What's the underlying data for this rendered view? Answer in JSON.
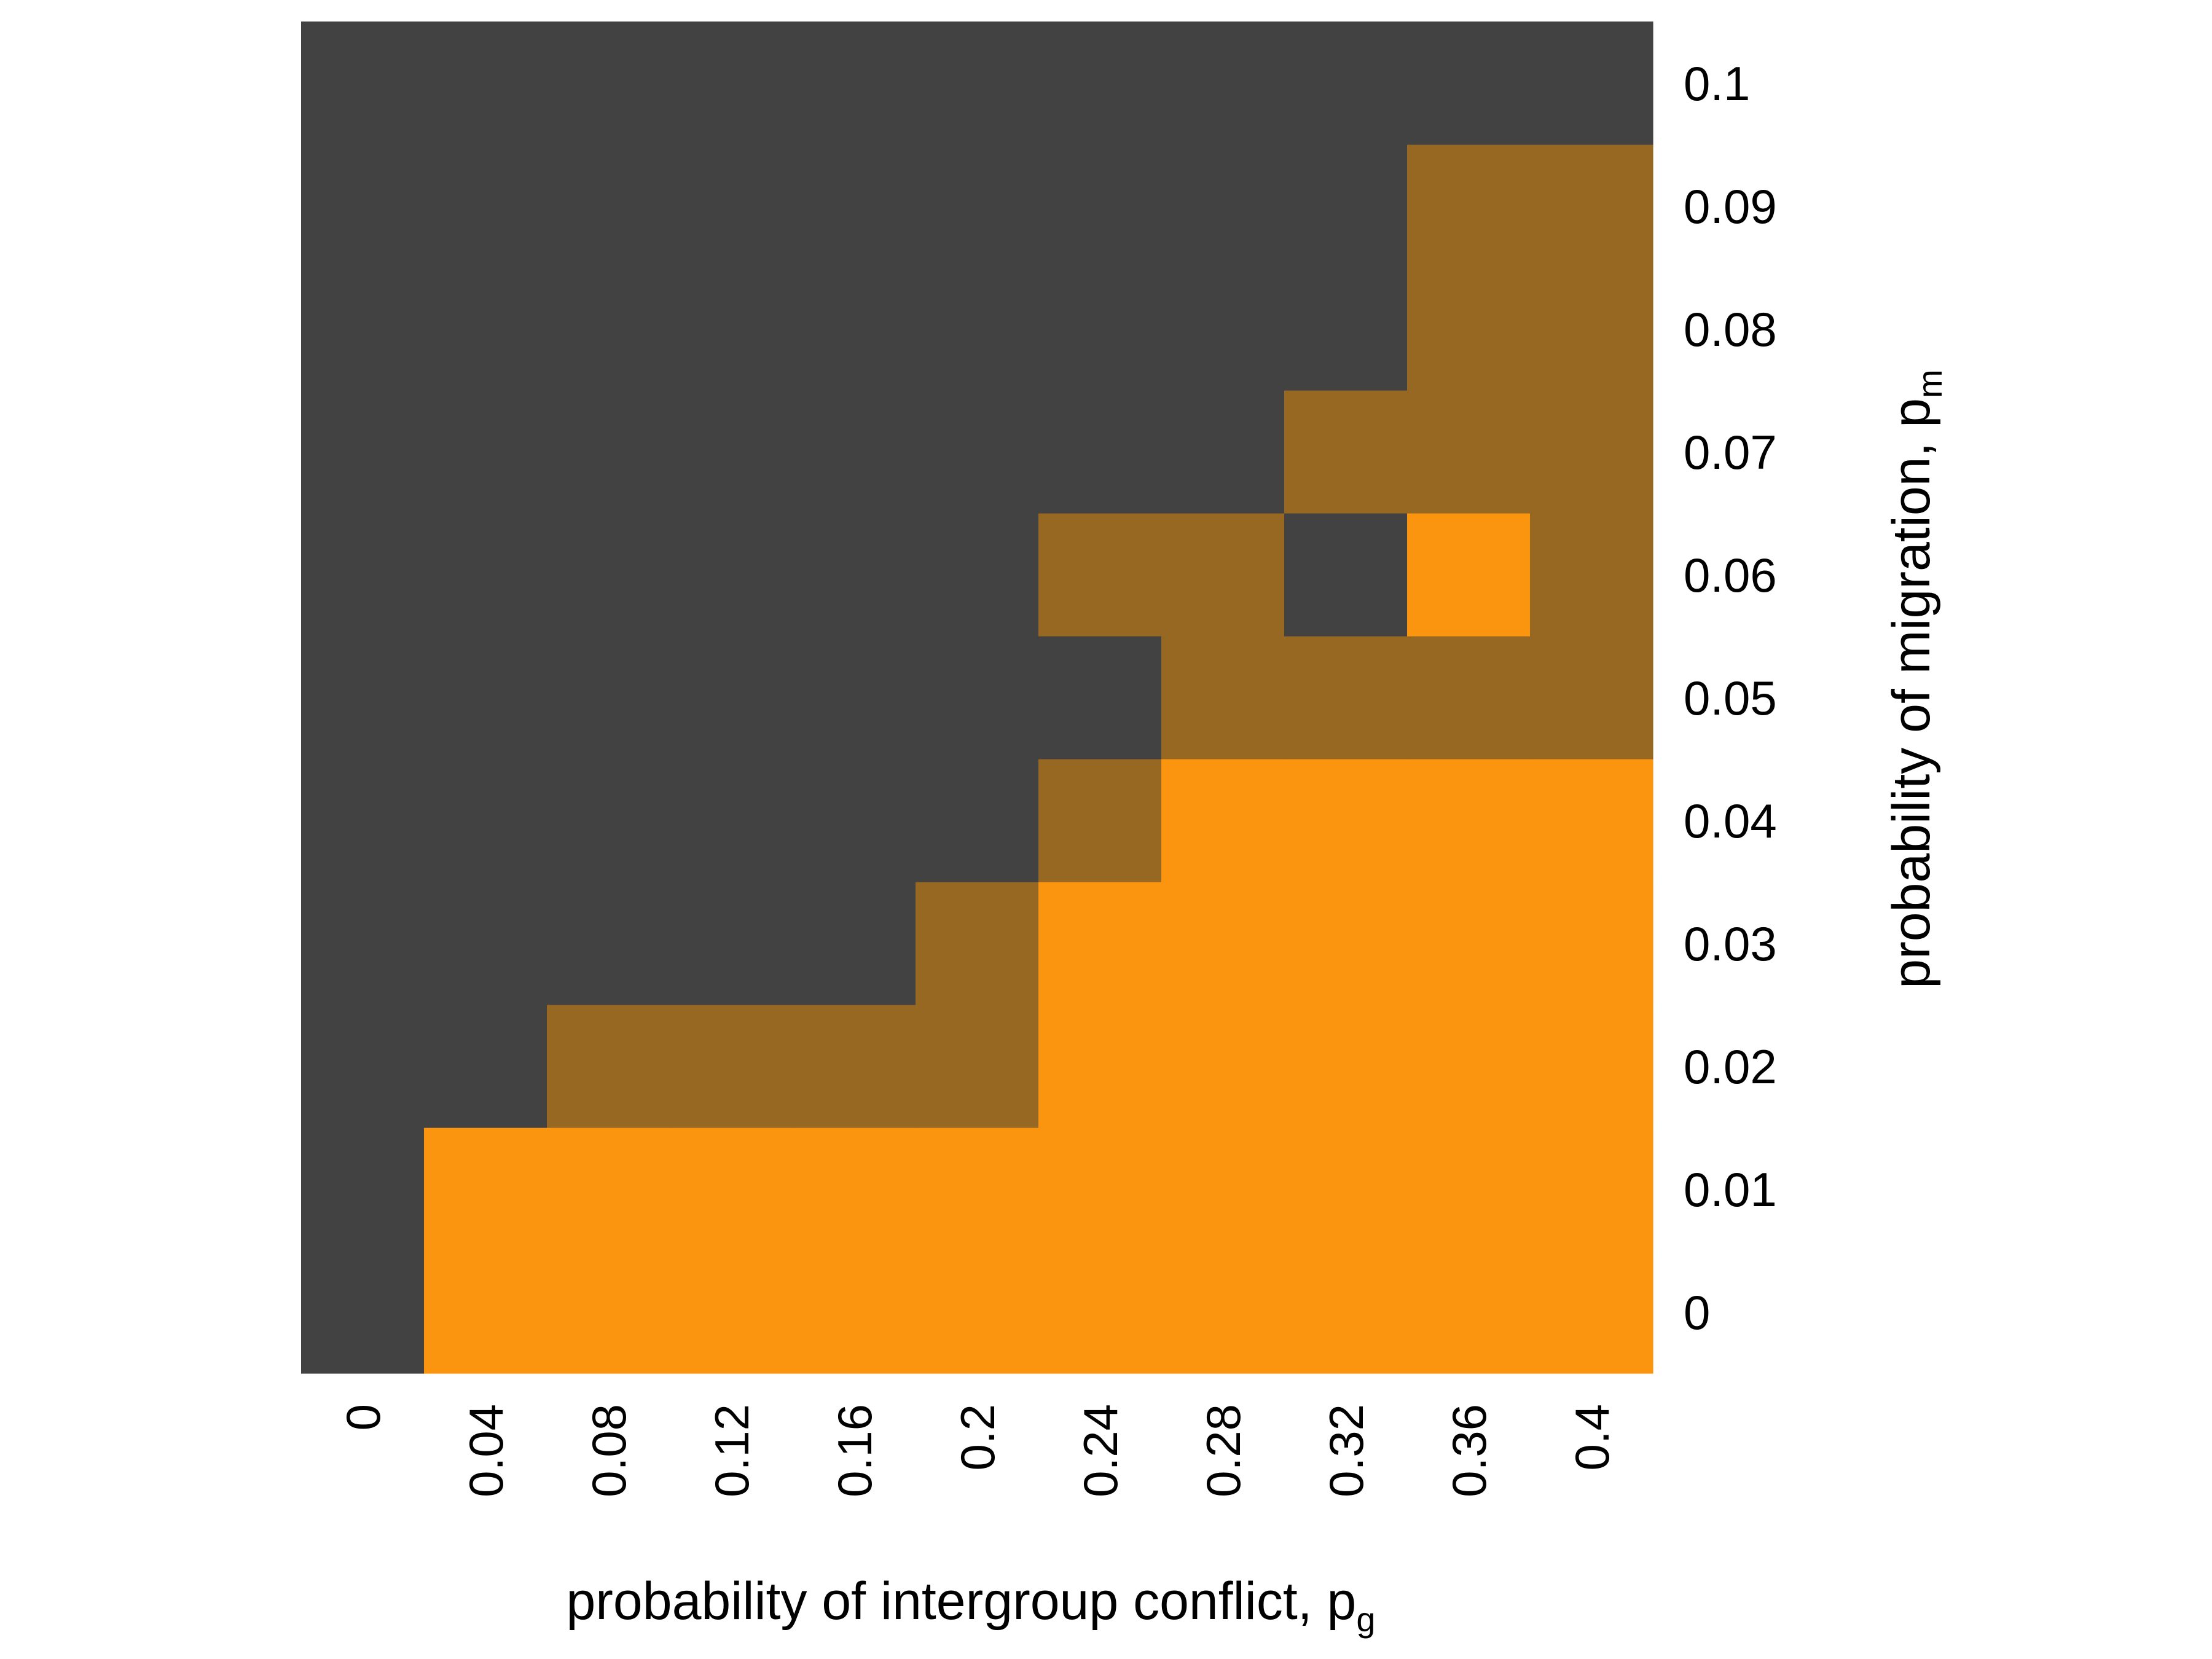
{
  "chart_data": {
    "type": "heatmap",
    "xlabel": "probability of intergroup conflict, p",
    "xlabel_subscript": "g",
    "ylabel": "probability of migration, p",
    "ylabel_subscript": "m",
    "x": [
      "0",
      "0.04",
      "0.08",
      "0.12",
      "0.16",
      "0.2",
      "0.24",
      "0.28",
      "0.32",
      "0.36",
      "0.4"
    ],
    "y": [
      "0",
      "0.01",
      "0.02",
      "0.03",
      "0.04",
      "0.05",
      "0.06",
      "0.07",
      "0.08",
      "0.09",
      "0.1"
    ],
    "colors": {
      "0": "#424242",
      "1": "#966822",
      "2": "#fb950f"
    },
    "grid": false,
    "legend": "none",
    "cells": [
      [
        0,
        2,
        2,
        2,
        2,
        2,
        2,
        2,
        2,
        2,
        2
      ],
      [
        0,
        2,
        2,
        2,
        2,
        2,
        2,
        2,
        2,
        2,
        2
      ],
      [
        0,
        0,
        1,
        1,
        1,
        1,
        2,
        2,
        2,
        2,
        2
      ],
      [
        0,
        0,
        0,
        0,
        0,
        1,
        2,
        2,
        2,
        2,
        2
      ],
      [
        0,
        0,
        0,
        0,
        0,
        0,
        1,
        2,
        2,
        2,
        2
      ],
      [
        0,
        0,
        0,
        0,
        0,
        0,
        0,
        1,
        1,
        1,
        1
      ],
      [
        0,
        0,
        0,
        0,
        0,
        0,
        1,
        1,
        0,
        2,
        1
      ],
      [
        0,
        0,
        0,
        0,
        0,
        0,
        0,
        0,
        1,
        1,
        1
      ],
      [
        0,
        0,
        0,
        0,
        0,
        0,
        0,
        0,
        0,
        1,
        1
      ],
      [
        0,
        0,
        0,
        0,
        0,
        0,
        0,
        0,
        0,
        1,
        1
      ],
      [
        0,
        0,
        0,
        0,
        0,
        0,
        0,
        0,
        0,
        0,
        0
      ]
    ]
  }
}
